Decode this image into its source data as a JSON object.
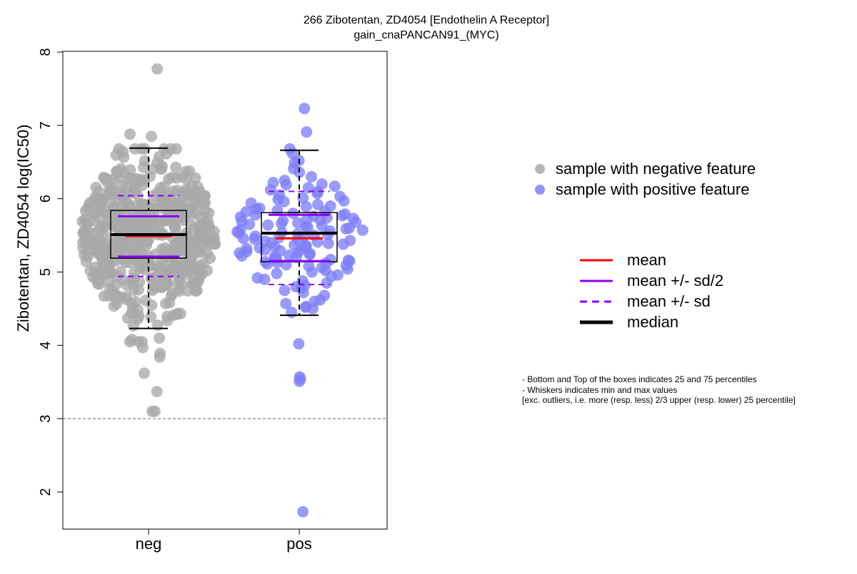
{
  "chart_data": {
    "type": "scatter",
    "title": "266 Zibotentan, ZD4054 [Endothelin A Receptor]",
    "subtitle": "gain_cnaPANCAN91_(MYC)",
    "ylabel": "Zibotentan, ZD4054 log(IC50)",
    "xlabel": "",
    "ylim": [
      1.5,
      8.05
    ],
    "yticks": [
      2,
      3,
      4,
      5,
      6,
      7,
      8
    ],
    "categories": [
      "neg",
      "pos"
    ],
    "reference_line": 3,
    "colors": {
      "neg_points": "#a9a9a9",
      "pos_points": "#7f7ff7",
      "mean": "#ff0000",
      "sd": "#8b00ff",
      "median": "#000000"
    },
    "groups": [
      {
        "category": "neg",
        "stats": {
          "whisker_low": 4.23,
          "q1": 5.19,
          "median": 5.51,
          "q3": 5.84,
          "whisker_high": 6.69,
          "mean": 5.49,
          "mean_minus_half_sd": 5.21,
          "mean_plus_half_sd": 5.76,
          "mean_minus_sd": 4.94,
          "mean_plus_sd": 6.04
        },
        "notable_values": [
          7.77,
          6.88,
          6.85,
          3.89,
          3.84,
          3.62,
          3.37,
          3.1,
          3.1,
          3.97,
          4.08
        ]
      },
      {
        "category": "pos",
        "stats": {
          "whisker_low": 4.41,
          "q1": 5.14,
          "median": 5.53,
          "q3": 5.81,
          "whisker_high": 6.66,
          "mean": 5.46,
          "mean_minus_half_sd": 5.15,
          "mean_plus_half_sd": 5.78,
          "mean_minus_sd": 4.83,
          "mean_plus_sd": 6.1
        },
        "values": [
          7.23,
          6.91,
          6.68,
          6.62,
          6.52,
          6.49,
          6.41,
          6.36,
          6.3,
          6.25,
          6.22,
          6.2,
          6.19,
          6.17,
          6.15,
          6.12,
          6.1,
          6.07,
          6.05,
          6.03,
          6.01,
          5.99,
          5.97,
          5.96,
          5.94,
          5.92,
          5.9,
          5.89,
          5.87,
          5.86,
          5.84,
          5.83,
          5.82,
          5.8,
          5.79,
          5.78,
          5.77,
          5.76,
          5.75,
          5.74,
          5.73,
          5.72,
          5.71,
          5.7,
          5.69,
          5.68,
          5.67,
          5.66,
          5.65,
          5.64,
          5.63,
          5.62,
          5.61,
          5.6,
          5.59,
          5.58,
          5.57,
          5.56,
          5.55,
          5.54,
          5.53,
          5.52,
          5.51,
          5.5,
          5.49,
          5.48,
          5.47,
          5.46,
          5.45,
          5.44,
          5.43,
          5.42,
          5.41,
          5.4,
          5.39,
          5.38,
          5.37,
          5.36,
          5.35,
          5.34,
          5.33,
          5.32,
          5.31,
          5.3,
          5.29,
          5.28,
          5.27,
          5.26,
          5.25,
          5.24,
          5.23,
          5.22,
          5.21,
          5.2,
          5.19,
          5.18,
          5.17,
          5.16,
          5.15,
          5.14,
          5.13,
          5.12,
          5.11,
          5.1,
          5.09,
          5.08,
          5.06,
          5.04,
          5.02,
          5.0,
          4.98,
          4.96,
          4.94,
          4.92,
          4.9,
          4.88,
          4.85,
          4.82,
          4.8,
          4.78,
          4.75,
          4.72,
          4.68,
          4.62,
          4.6,
          4.57,
          4.53,
          4.52,
          4.5,
          4.45,
          4.02,
          3.57,
          3.54,
          3.51,
          1.73
        ]
      }
    ],
    "legend": {
      "placement": "right",
      "points": [
        {
          "label": "sample with negative feature",
          "color": "#a9a9a9"
        },
        {
          "label": "sample with positive feature",
          "color": "#7f7ff7"
        }
      ],
      "lines": [
        {
          "label": "mean",
          "color": "#ff0000",
          "style": "solid",
          "weight": "normal"
        },
        {
          "label": "mean +/- sd/2",
          "color": "#8b00ff",
          "style": "solid",
          "weight": "normal"
        },
        {
          "label": "mean +/- sd",
          "color": "#8b00ff",
          "style": "dashed",
          "weight": "normal"
        },
        {
          "label": "median",
          "color": "#000000",
          "style": "solid",
          "weight": "bold"
        }
      ]
    },
    "notes": [
      "- Bottom and Top of the boxes indicates 25 and 75 percentiles",
      "- Whiskers indicates min and max values",
      "[exc. outliers, i.e. more (resp. less) 2/3 upper (resp. lower) 25 percentile]"
    ]
  }
}
